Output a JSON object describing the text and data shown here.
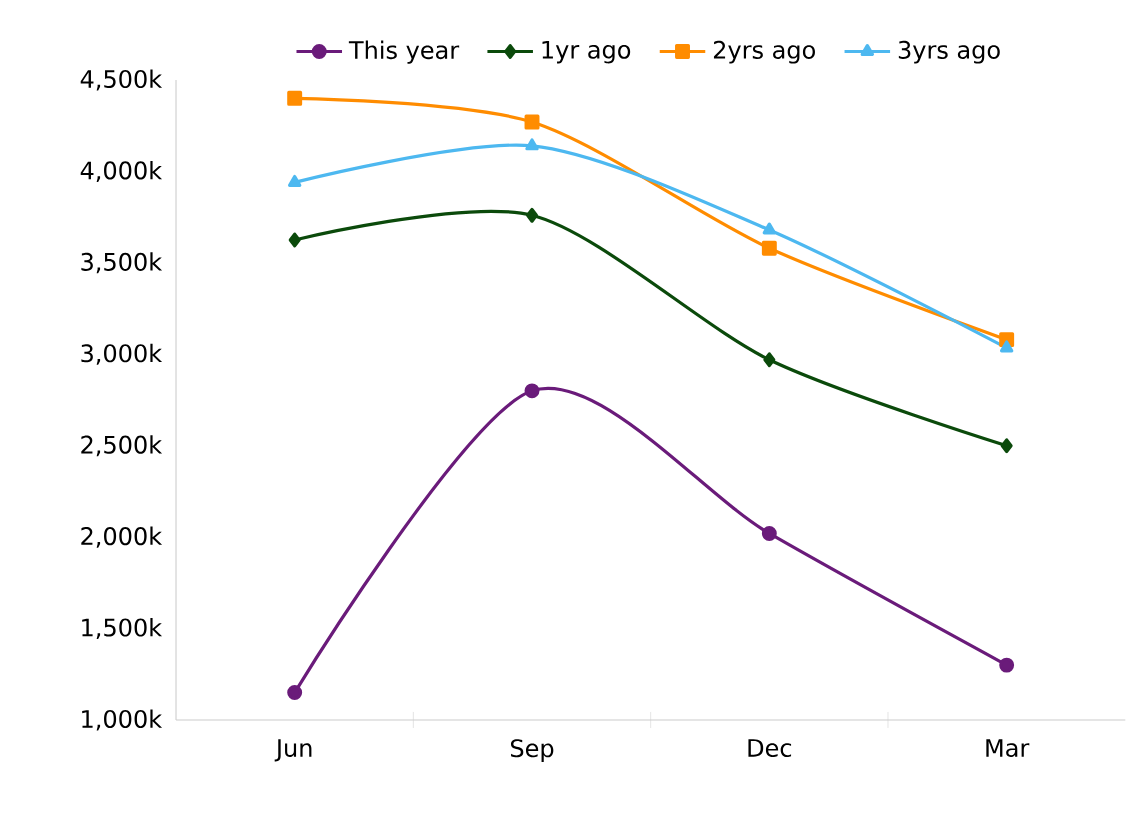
{
  "chart_data": {
    "type": "line",
    "categories": [
      "Jun",
      "Sep",
      "Dec",
      "Mar"
    ],
    "series": [
      {
        "name": "This year",
        "color": "#6a1b7a",
        "marker": "circle",
        "values": [
          1150,
          2800,
          2020,
          1300
        ]
      },
      {
        "name": "1yr ago",
        "color": "#0b4a0b",
        "marker": "diamond",
        "values": [
          3625,
          3760,
          2970,
          2500
        ]
      },
      {
        "name": "2yrs ago",
        "color": "#ff8c00",
        "marker": "square",
        "values": [
          4400,
          4270,
          3580,
          3080
        ]
      },
      {
        "name": "3yrs ago",
        "color": "#4db8f0",
        "marker": "triangle",
        "values": [
          3940,
          4140,
          3680,
          3035
        ]
      }
    ],
    "ylim": [
      1000,
      4500
    ],
    "yticks": [
      {
        "value": 1000,
        "label": "1,000k"
      },
      {
        "value": 1500,
        "label": "1,500k"
      },
      {
        "value": 2000,
        "label": "2,000k"
      },
      {
        "value": 2500,
        "label": "2,500k"
      },
      {
        "value": 3000,
        "label": "3,000k"
      },
      {
        "value": 3500,
        "label": "3,500k"
      },
      {
        "value": 4000,
        "label": "4,000k"
      },
      {
        "value": 4500,
        "label": "4,500k"
      }
    ],
    "grid": false,
    "legend": "top",
    "line_style": "solid"
  }
}
